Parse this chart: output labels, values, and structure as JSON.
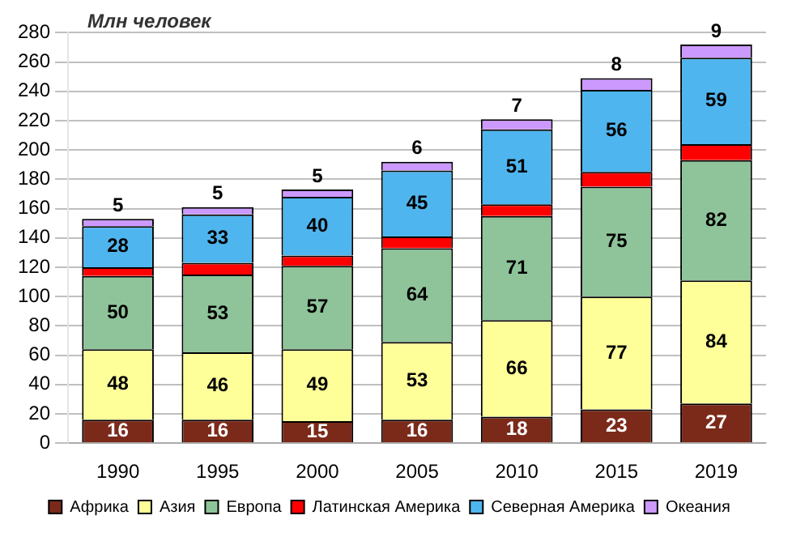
{
  "chart_data": {
    "type": "bar",
    "stacked": true,
    "ylabel": "Млн человек",
    "categories": [
      "1990",
      "1995",
      "2000",
      "2005",
      "2010",
      "2015",
      "2019"
    ],
    "ylim": [
      0,
      280
    ],
    "yticks": [
      0,
      20,
      40,
      60,
      80,
      100,
      120,
      140,
      160,
      180,
      200,
      220,
      240,
      260,
      280
    ],
    "grid": "y",
    "legend": "bottom",
    "series": [
      {
        "name": "Африка",
        "color": "#7b2a1a",
        "values": [
          16,
          16,
          15,
          16,
          18,
          23,
          27
        ],
        "value_labels": [
          "16",
          "16",
          "15",
          "16",
          "18",
          "23",
          "27"
        ]
      },
      {
        "name": "Азия",
        "color": "#ffff99",
        "values": [
          48,
          46,
          49,
          53,
          66,
          77,
          84
        ],
        "value_labels": [
          "48",
          "46",
          "49",
          "53",
          "66",
          "77",
          "84"
        ]
      },
      {
        "name": "Европа",
        "color": "#8fc49a",
        "values": [
          50,
          53,
          57,
          64,
          71,
          75,
          82
        ],
        "value_labels": [
          "50",
          "53",
          "57",
          "64",
          "71",
          "75",
          "82"
        ]
      },
      {
        "name": "Латинская Америка",
        "color": "#ff0000",
        "values": [
          6,
          8,
          7,
          8,
          8,
          10,
          11
        ],
        "value_labels": [
          null,
          null,
          null,
          null,
          null,
          null,
          null
        ]
      },
      {
        "name": "Северная Америка",
        "color": "#4fb5ee",
        "values": [
          28,
          33,
          40,
          45,
          51,
          56,
          59
        ],
        "value_labels": [
          "28",
          "33",
          "40",
          "45",
          "51",
          "56",
          "59"
        ]
      },
      {
        "name": "Океания",
        "color": "#cc99ff",
        "values": [
          5,
          5,
          5,
          6,
          7,
          8,
          9
        ],
        "value_labels": [
          "5",
          "5",
          "5",
          "6",
          "7",
          "8",
          "9"
        ]
      }
    ]
  }
}
